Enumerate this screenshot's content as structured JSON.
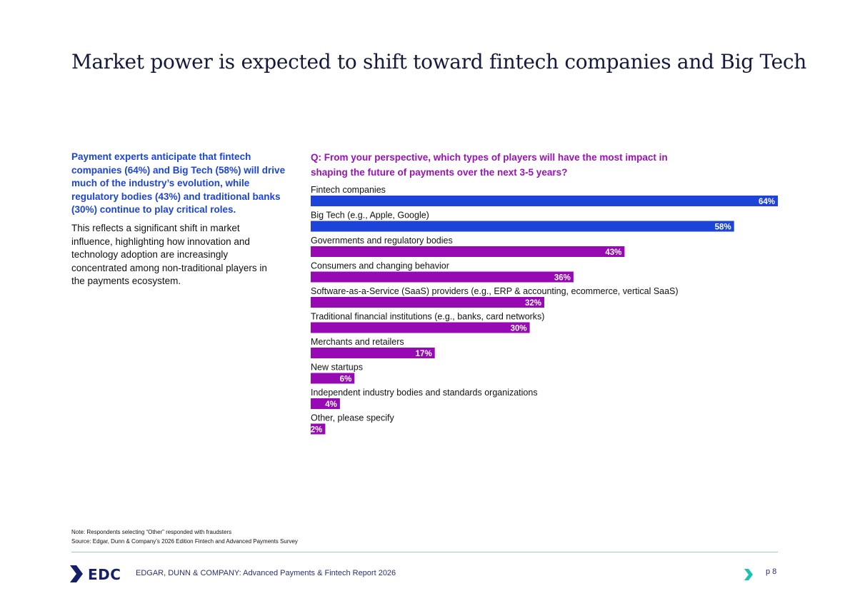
{
  "page": {
    "title": "Market power is expected to shift toward fintech companies and Big Tech"
  },
  "left": {
    "intro": "Payment experts anticipate that fintech companies (64%) and Big Tech (58%) will drive much of the industry’s evolution, while regulatory bodies (43%) and traditional banks (30%) continue to play critical roles.",
    "body": "This reflects a significant shift in market influence, highlighting how innovation and technology adoption are increasingly concentrated among non-traditional players in the payments ecosystem."
  },
  "question": "Q: From your perspective, which types of players will have the most impact in shaping the future of payments over the next 3-5 years?",
  "chart_data": {
    "type": "bar",
    "orientation": "horizontal",
    "title": "Q: From your perspective, which types of players will have the most impact in shaping the future of payments over the next 3-5 years?",
    "xlabel": "",
    "ylabel": "",
    "xlim": [
      0,
      64
    ],
    "grid": false,
    "categories": [
      "Fintech companies",
      "Big Tech (e.g., Apple, Google)",
      "Governments and regulatory bodies",
      "Consumers and changing behavior",
      "Software-as-a-Service (SaaS) providers (e.g., ERP & accounting, ecommerce, vertical SaaS)",
      "Traditional financial institutions (e.g., banks, card networks)",
      "Merchants and retailers",
      "New startups",
      "Independent industry bodies and standards organizations",
      "Other, please specify"
    ],
    "values": [
      64,
      58,
      43,
      36,
      32,
      30,
      17,
      6,
      4,
      2
    ],
    "value_labels": [
      "64%",
      "58%",
      "43%",
      "36%",
      "32%",
      "30%",
      "17%",
      "6%",
      "4%",
      "2%"
    ],
    "highlight_count": 2,
    "colors": {
      "highlight": "#1d44d8",
      "default": "#9609b3",
      "label_text": "#ffffff"
    }
  },
  "footer": {
    "note": "Note: Respondents selecting “Other” responded with fraudsters",
    "source": "Source: Edgar, Dunn & Company’s 2026 Edition Fintech and Advanced Payments Survey",
    "logo_text": "EDC",
    "report": "EDGAR, DUNN & COMPANY: Advanced Payments & Fintech Report 2026",
    "page": "p 8"
  },
  "colors": {
    "title": "#141a3c",
    "accent_blue": "#1d44d8",
    "accent_purple": "#9b11b8",
    "logo_navy": "#162066",
    "logo_teal": "#19c3b3",
    "rule": "#9fc7e6"
  }
}
